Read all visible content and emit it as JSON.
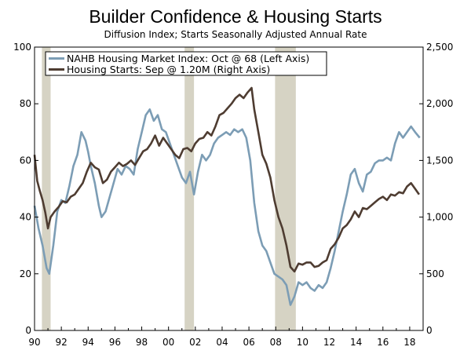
{
  "chart_data": {
    "type": "line",
    "title": "Builder Confidence & Housing Starts",
    "subtitle": "Diffusion Index; Starts Seasonally Adjusted Annual Rate",
    "x_range": [
      1990,
      2019
    ],
    "x_ticks": [
      {
        "value": 1990,
        "label": "90"
      },
      {
        "value": 1992,
        "label": "92"
      },
      {
        "value": 1994,
        "label": "94"
      },
      {
        "value": 1996,
        "label": "96"
      },
      {
        "value": 1998,
        "label": "98"
      },
      {
        "value": 2000,
        "label": "00"
      },
      {
        "value": 2002,
        "label": "02"
      },
      {
        "value": 2004,
        "label": "04"
      },
      {
        "value": 2006,
        "label": "06"
      },
      {
        "value": 2008,
        "label": "08"
      },
      {
        "value": 2010,
        "label": "10"
      },
      {
        "value": 2012,
        "label": "12"
      },
      {
        "value": 2014,
        "label": "14"
      },
      {
        "value": 2016,
        "label": "16"
      },
      {
        "value": 2018,
        "label": "18"
      }
    ],
    "left_axis": {
      "ylim": [
        0,
        100
      ],
      "ticks": [
        0,
        20,
        40,
        60,
        80,
        100
      ],
      "labels": [
        "0",
        "20",
        "40",
        "60",
        "80",
        "100"
      ]
    },
    "right_axis": {
      "ylim": [
        0,
        2500
      ],
      "ticks": [
        0,
        500,
        1000,
        1500,
        2000,
        2500
      ],
      "labels": [
        "0",
        "500",
        "1,000",
        "1,500",
        "2,000",
        "2,500"
      ]
    },
    "recessions": [
      {
        "start": 1990.55,
        "end": 1991.2
      },
      {
        "start": 2001.2,
        "end": 2001.9
      },
      {
        "start": 2007.95,
        "end": 2009.5
      }
    ],
    "series": [
      {
        "name": "NAHB Housing Market Index: Oct @ 68 (Left Axis)",
        "axis": "left",
        "color": "#7c9db5",
        "x": [
          1990.0,
          1990.3,
          1990.6,
          1990.9,
          1991.1,
          1991.4,
          1991.7,
          1992.0,
          1992.3,
          1992.6,
          1992.9,
          1993.2,
          1993.5,
          1993.8,
          1994.0,
          1994.2,
          1994.5,
          1994.8,
          1995.0,
          1995.3,
          1995.6,
          1995.9,
          1996.2,
          1996.5,
          1996.8,
          1997.1,
          1997.4,
          1997.7,
          1998.0,
          1998.3,
          1998.6,
          1998.9,
          1999.2,
          1999.5,
          1999.8,
          2000.1,
          2000.4,
          2000.7,
          2001.0,
          2001.3,
          2001.6,
          2001.9,
          2002.2,
          2002.5,
          2002.8,
          2003.1,
          2003.4,
          2003.7,
          2004.0,
          2004.3,
          2004.6,
          2004.9,
          2005.2,
          2005.5,
          2005.8,
          2006.1,
          2006.4,
          2006.7,
          2007.0,
          2007.3,
          2007.6,
          2007.9,
          2008.2,
          2008.5,
          2008.8,
          2009.1,
          2009.4,
          2009.7,
          2010.0,
          2010.3,
          2010.6,
          2010.9,
          2011.2,
          2011.5,
          2011.8,
          2012.1,
          2012.4,
          2012.7,
          2013.0,
          2013.3,
          2013.6,
          2013.9,
          2014.2,
          2014.5,
          2014.8,
          2015.1,
          2015.4,
          2015.7,
          2016.0,
          2016.3,
          2016.6,
          2016.9,
          2017.2,
          2017.5,
          2017.8,
          2018.1,
          2018.4,
          2018.75
        ],
        "values": [
          44,
          36,
          30,
          22,
          20,
          30,
          42,
          46,
          45,
          51,
          58,
          62,
          70,
          67,
          63,
          58,
          52,
          44,
          40,
          42,
          47,
          52,
          57,
          55,
          58,
          57,
          55,
          64,
          70,
          76,
          78,
          74,
          76,
          71,
          70,
          66,
          62,
          58,
          54,
          52,
          56,
          48,
          56,
          62,
          60,
          62,
          66,
          68,
          69,
          70,
          69,
          71,
          70,
          71,
          68,
          60,
          45,
          35,
          30,
          28,
          24,
          20,
          19,
          18,
          16,
          9,
          12,
          17,
          16,
          17,
          15,
          14,
          16,
          15,
          17,
          22,
          28,
          35,
          42,
          48,
          55,
          57,
          52,
          49,
          55,
          56,
          59,
          60,
          60,
          61,
          60,
          66,
          70,
          68,
          70,
          72,
          70,
          68
        ]
      },
      {
        "name": "Housing Starts: Sep @ 1.20M (Right Axis)",
        "axis": "right",
        "color": "#4e3c31",
        "x": [
          1990.0,
          1990.2,
          1990.4,
          1990.6,
          1990.8,
          1991.0,
          1991.2,
          1991.5,
          1991.8,
          1992.1,
          1992.4,
          1992.7,
          1993.0,
          1993.3,
          1993.6,
          1993.9,
          1994.2,
          1994.5,
          1994.8,
          1995.1,
          1995.4,
          1995.7,
          1996.0,
          1996.3,
          1996.6,
          1996.9,
          1997.2,
          1997.5,
          1997.8,
          1998.1,
          1998.4,
          1998.7,
          1999.0,
          1999.3,
          1999.6,
          1999.9,
          2000.2,
          2000.5,
          2000.8,
          2001.1,
          2001.4,
          2001.7,
          2002.0,
          2002.3,
          2002.6,
          2002.9,
          2003.2,
          2003.5,
          2003.8,
          2004.1,
          2004.4,
          2004.7,
          2005.0,
          2005.3,
          2005.6,
          2005.9,
          2006.2,
          2006.4,
          2006.7,
          2007.0,
          2007.3,
          2007.6,
          2007.9,
          2008.2,
          2008.5,
          2008.8,
          2009.1,
          2009.4,
          2009.7,
          2010.0,
          2010.3,
          2010.6,
          2010.9,
          2011.2,
          2011.5,
          2011.8,
          2012.1,
          2012.4,
          2012.7,
          2013.0,
          2013.3,
          2013.6,
          2013.9,
          2014.2,
          2014.5,
          2014.8,
          2015.1,
          2015.4,
          2015.7,
          2016.0,
          2016.3,
          2016.6,
          2016.9,
          2017.2,
          2017.5,
          2017.8,
          2018.1,
          2018.4,
          2018.7
        ],
        "values": [
          1550,
          1320,
          1230,
          1150,
          1040,
          900,
          1000,
          1050,
          1090,
          1140,
          1130,
          1180,
          1200,
          1250,
          1300,
          1400,
          1480,
          1440,
          1420,
          1300,
          1330,
          1400,
          1440,
          1480,
          1450,
          1470,
          1500,
          1460,
          1520,
          1580,
          1600,
          1650,
          1720,
          1630,
          1700,
          1650,
          1600,
          1550,
          1520,
          1600,
          1610,
          1580,
          1650,
          1690,
          1700,
          1750,
          1720,
          1800,
          1900,
          1920,
          1960,
          2000,
          2050,
          2080,
          2050,
          2100,
          2140,
          1950,
          1750,
          1550,
          1470,
          1350,
          1150,
          1000,
          900,
          750,
          560,
          520,
          590,
          580,
          600,
          600,
          560,
          570,
          600,
          620,
          720,
          760,
          820,
          900,
          930,
          980,
          1050,
          1000,
          1080,
          1070,
          1100,
          1130,
          1160,
          1180,
          1150,
          1200,
          1190,
          1220,
          1210,
          1270,
          1300,
          1250,
          1200
        ]
      }
    ]
  }
}
